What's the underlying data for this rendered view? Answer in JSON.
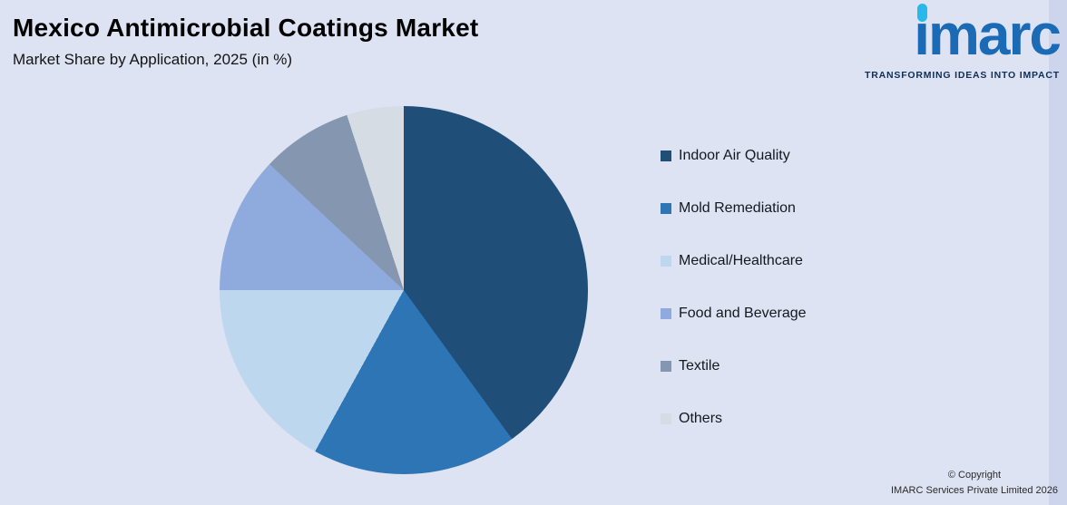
{
  "header": {
    "title": "Mexico Antimicrobial Coatings Market",
    "subtitle": "Market Share by Application, 2025 (in %)"
  },
  "logo": {
    "brand": "imarc",
    "tagline": "TRANSFORMING IDEAS INTO IMPACT"
  },
  "chart_data": {
    "type": "pie",
    "title": "Mexico Antimicrobial Coatings Market",
    "subtitle": "Market Share by Application, 2025 (in %)",
    "unit": "%",
    "start_angle_deg": 0,
    "direction": "clockwise",
    "values_shown_on_chart": false,
    "legend_position": "right",
    "segments": [
      {
        "label": "Indoor Air Quality",
        "value": 40,
        "color": "#1f4e79"
      },
      {
        "label": "Mold Remediation",
        "value": 18,
        "color": "#2e75b6"
      },
      {
        "label": "Medical/Healthcare",
        "value": 17,
        "color": "#bdd7ee"
      },
      {
        "label": "Food and Beverage",
        "value": 12,
        "color": "#8faadc"
      },
      {
        "label": "Textile",
        "value": 8,
        "color": "#8496b0"
      },
      {
        "label": "Others",
        "value": 5,
        "color": "#d6dce4"
      }
    ]
  },
  "footer": {
    "copyright_line1": "© Copyright",
    "copyright_line2": "IMARC Services Private Limited 2026"
  },
  "colors": {
    "background": "#dde3f2",
    "right_strip": "#ccd5eb",
    "brand_blue": "#1a6ab5",
    "brand_cyan": "#29b8ea",
    "tagline_navy": "#0f2f56",
    "title_text": "#000000",
    "legend_text": "#141821"
  }
}
